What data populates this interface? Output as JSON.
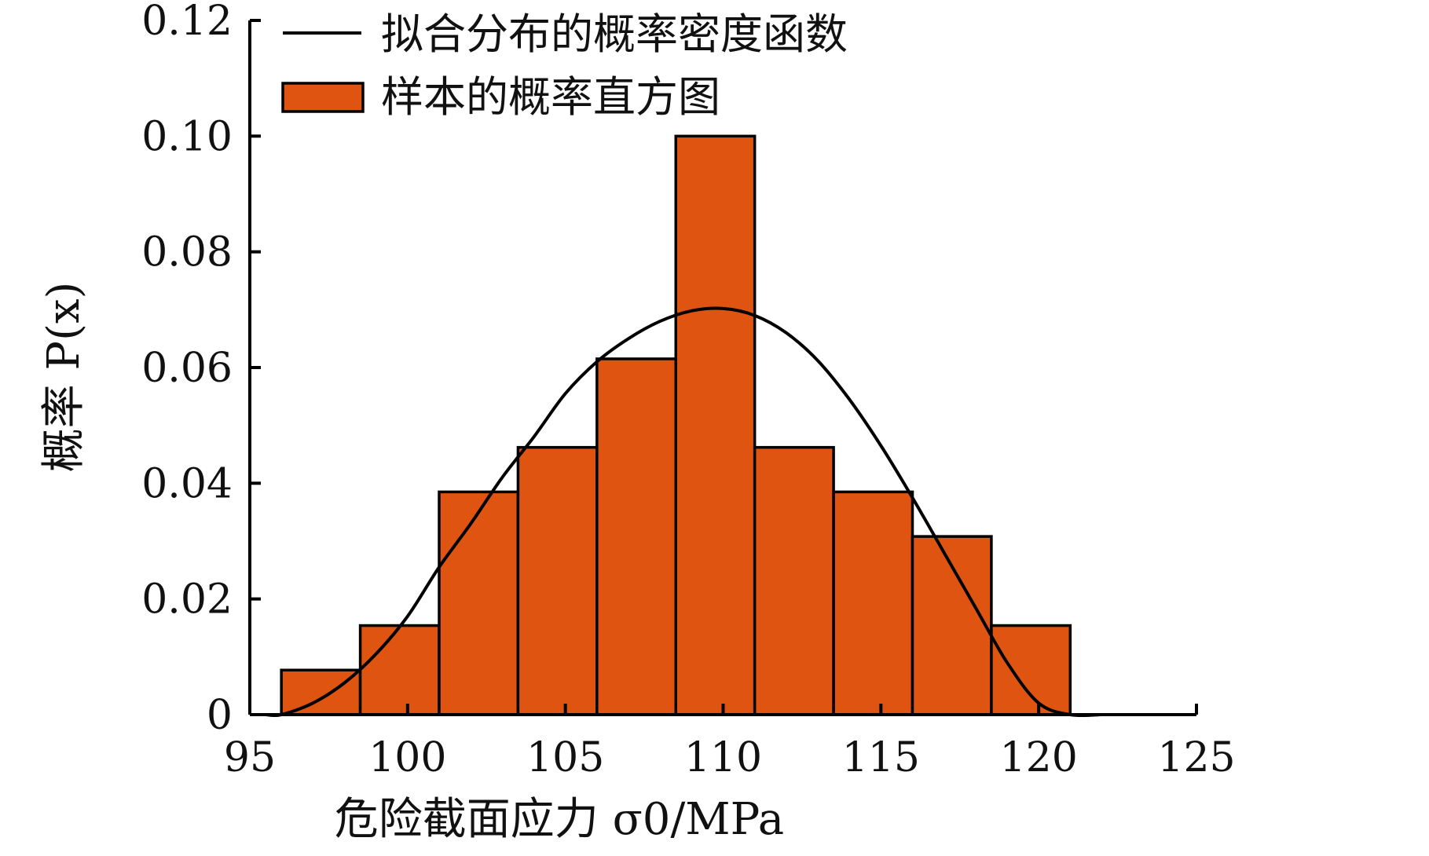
{
  "chart_data": {
    "type": "bar",
    "title": "",
    "xlabel": "危险截面应力 σ0/MPa",
    "ylabel": "概率 P(x)",
    "xlim": [
      95,
      125
    ],
    "ylim": [
      0,
      0.12
    ],
    "x_ticks": [
      "95",
      "100",
      "105",
      "110",
      "115",
      "120",
      "125"
    ],
    "y_ticks": [
      "0",
      "0.02",
      "0.04",
      "0.06",
      "0.08",
      "0.10",
      "0.12"
    ],
    "grid": false,
    "legend_position": "top-left",
    "series": [
      {
        "name": "样本的概率直方图",
        "kind": "histogram",
        "color": "#E05412",
        "bin_edges": [
          96.0,
          98.5,
          101.0,
          103.5,
          106.0,
          108.5,
          111.0,
          113.5,
          116.0,
          118.5,
          121.0
        ],
        "values": [
          0.0077,
          0.0154,
          0.0385,
          0.0462,
          0.0615,
          0.1,
          0.0462,
          0.0385,
          0.0308,
          0.0154
        ]
      },
      {
        "name": "拟合分布的概率密度函数",
        "kind": "line",
        "color": "#000000",
        "x": [
          95.5,
          96,
          97,
          98,
          99,
          100,
          101,
          102,
          103,
          104,
          105,
          106,
          107,
          108,
          109,
          110,
          111,
          112,
          113,
          114,
          115,
          116,
          117,
          118,
          119,
          120,
          121,
          122
        ],
        "values": [
          0,
          0,
          0.002,
          0.0055,
          0.0105,
          0.017,
          0.0255,
          0.033,
          0.041,
          0.048,
          0.0555,
          0.061,
          0.065,
          0.068,
          0.0698,
          0.0702,
          0.069,
          0.066,
          0.0612,
          0.0545,
          0.0465,
          0.0375,
          0.028,
          0.0185,
          0.009,
          0.002,
          0,
          0
        ]
      }
    ]
  }
}
